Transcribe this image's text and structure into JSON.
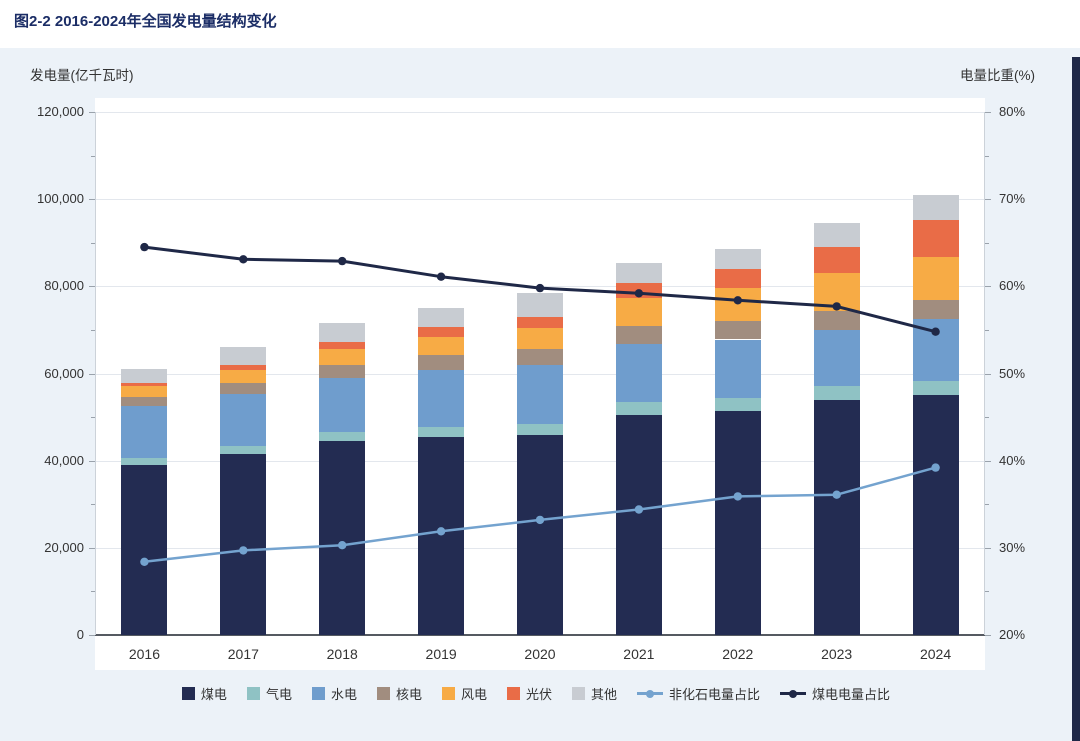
{
  "colors": {
    "title": "#1b2d66",
    "panel_bg": "#ecf2f8",
    "plot_bg": "#ffffff",
    "grid": "#e3e7ed",
    "axis_line": "#555a61",
    "tick_text": "#333333",
    "edge_strip": "#1f2847"
  },
  "chart_data": {
    "type": "bar",
    "subtype": "stacked-bars-with-overlay-lines",
    "title": "图2-2 2016-2024年全国发电量结构变化",
    "categories": [
      "2016",
      "2017",
      "2018",
      "2019",
      "2020",
      "2021",
      "2022",
      "2023",
      "2024"
    ],
    "left_axis": {
      "title": "发电量(亿千瓦时)",
      "min": 0,
      "max": 120000,
      "tick_step": 20000,
      "tick_labels_top_to_bottom": [
        "120,000",
        "100,000",
        "80,000",
        "60,000",
        "40,000",
        "20,000",
        "0"
      ]
    },
    "right_axis": {
      "title": "电量比重(%)",
      "min": 20,
      "max": 80,
      "tick_step": 10,
      "tick_labels_top_to_bottom": [
        "80%",
        "70%",
        "60%",
        "50%",
        "40%",
        "30%",
        "20%"
      ]
    },
    "bar_series": [
      {
        "name": "煤电",
        "color": "#232c52",
        "values": [
          39000,
          41500,
          44500,
          45500,
          46000,
          50500,
          51500,
          54000,
          55000
        ]
      },
      {
        "name": "气电",
        "color": "#8fc2c4",
        "values": [
          1700,
          1900,
          2150,
          2300,
          2500,
          2870,
          2780,
          3100,
          3200
        ]
      },
      {
        "name": "水电",
        "color": "#6f9dcd",
        "values": [
          11800,
          11900,
          12300,
          13000,
          13550,
          13400,
          13520,
          12860,
          14200
        ]
      },
      {
        "name": "核电",
        "color": "#a18d7f",
        "values": [
          2130,
          2480,
          2940,
          3480,
          3660,
          4080,
          4180,
          4350,
          4450
        ]
      },
      {
        "name": "风电",
        "color": "#f7ab45",
        "values": [
          2410,
          2950,
          3660,
          4060,
          4670,
          6560,
          7630,
          8860,
          9970
        ]
      },
      {
        "name": "光伏",
        "color": "#e96c47",
        "values": [
          670,
          1170,
          1780,
          2240,
          2610,
          3270,
          4280,
          5840,
          8340
        ]
      },
      {
        "name": "其他",
        "color": "#c8ccd2",
        "values": [
          3290,
          4100,
          4170,
          4420,
          5510,
          4660,
          4610,
          5490,
          5840
        ]
      }
    ],
    "line_series": [
      {
        "name": "非化石电量占比",
        "color": "#74a3cf",
        "axis": "right",
        "stroke_width": 2.5,
        "values": [
          28.4,
          29.7,
          30.3,
          31.9,
          33.2,
          34.4,
          35.9,
          36.1,
          39.2
        ]
      },
      {
        "name": "煤电电量占比",
        "color": "#1f2847",
        "axis": "right",
        "stroke_width": 3,
        "values": [
          64.5,
          63.1,
          62.9,
          61.1,
          59.8,
          59.2,
          58.4,
          57.7,
          54.8
        ]
      }
    ],
    "grid": true,
    "legend_position": "bottom"
  }
}
